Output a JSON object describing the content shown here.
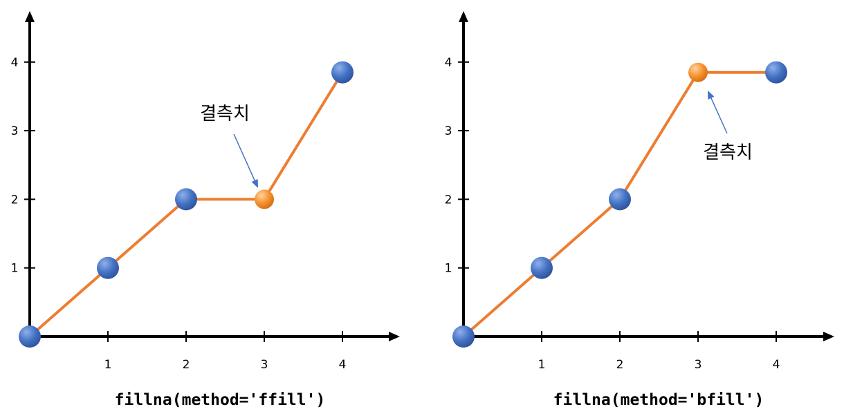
{
  "colors": {
    "line": "#ED7D31",
    "point_normal": "#4472C4",
    "point_missing": "#F08A24",
    "arrow": "#4472C4",
    "axis": "#000000"
  },
  "chart_data": [
    {
      "type": "line",
      "title": "",
      "caption": "fillna(method='ffill')",
      "x": [
        0,
        1,
        2,
        3,
        4
      ],
      "y": [
        0,
        1,
        2,
        2,
        3.85
      ],
      "missing_index": 3,
      "x_ticks": [
        "1",
        "2",
        "3",
        "4"
      ],
      "y_ticks": [
        "1",
        "2",
        "3",
        "4"
      ],
      "annotation": {
        "text": "결측치",
        "target_index": 3
      },
      "xlim": [
        0,
        4.7
      ],
      "ylim": [
        0,
        4.7
      ]
    },
    {
      "type": "line",
      "title": "",
      "caption": "fillna(method='bfill')",
      "x": [
        0,
        1,
        2,
        3,
        4
      ],
      "y": [
        0,
        1,
        2,
        3.85,
        3.85
      ],
      "missing_index": 3,
      "x_ticks": [
        "1",
        "2",
        "3",
        "4"
      ],
      "y_ticks": [
        "1",
        "2",
        "3",
        "4"
      ],
      "annotation": {
        "text": "결측치",
        "target_index": 3
      },
      "xlim": [
        0,
        4.7
      ],
      "ylim": [
        0,
        4.7
      ]
    }
  ]
}
